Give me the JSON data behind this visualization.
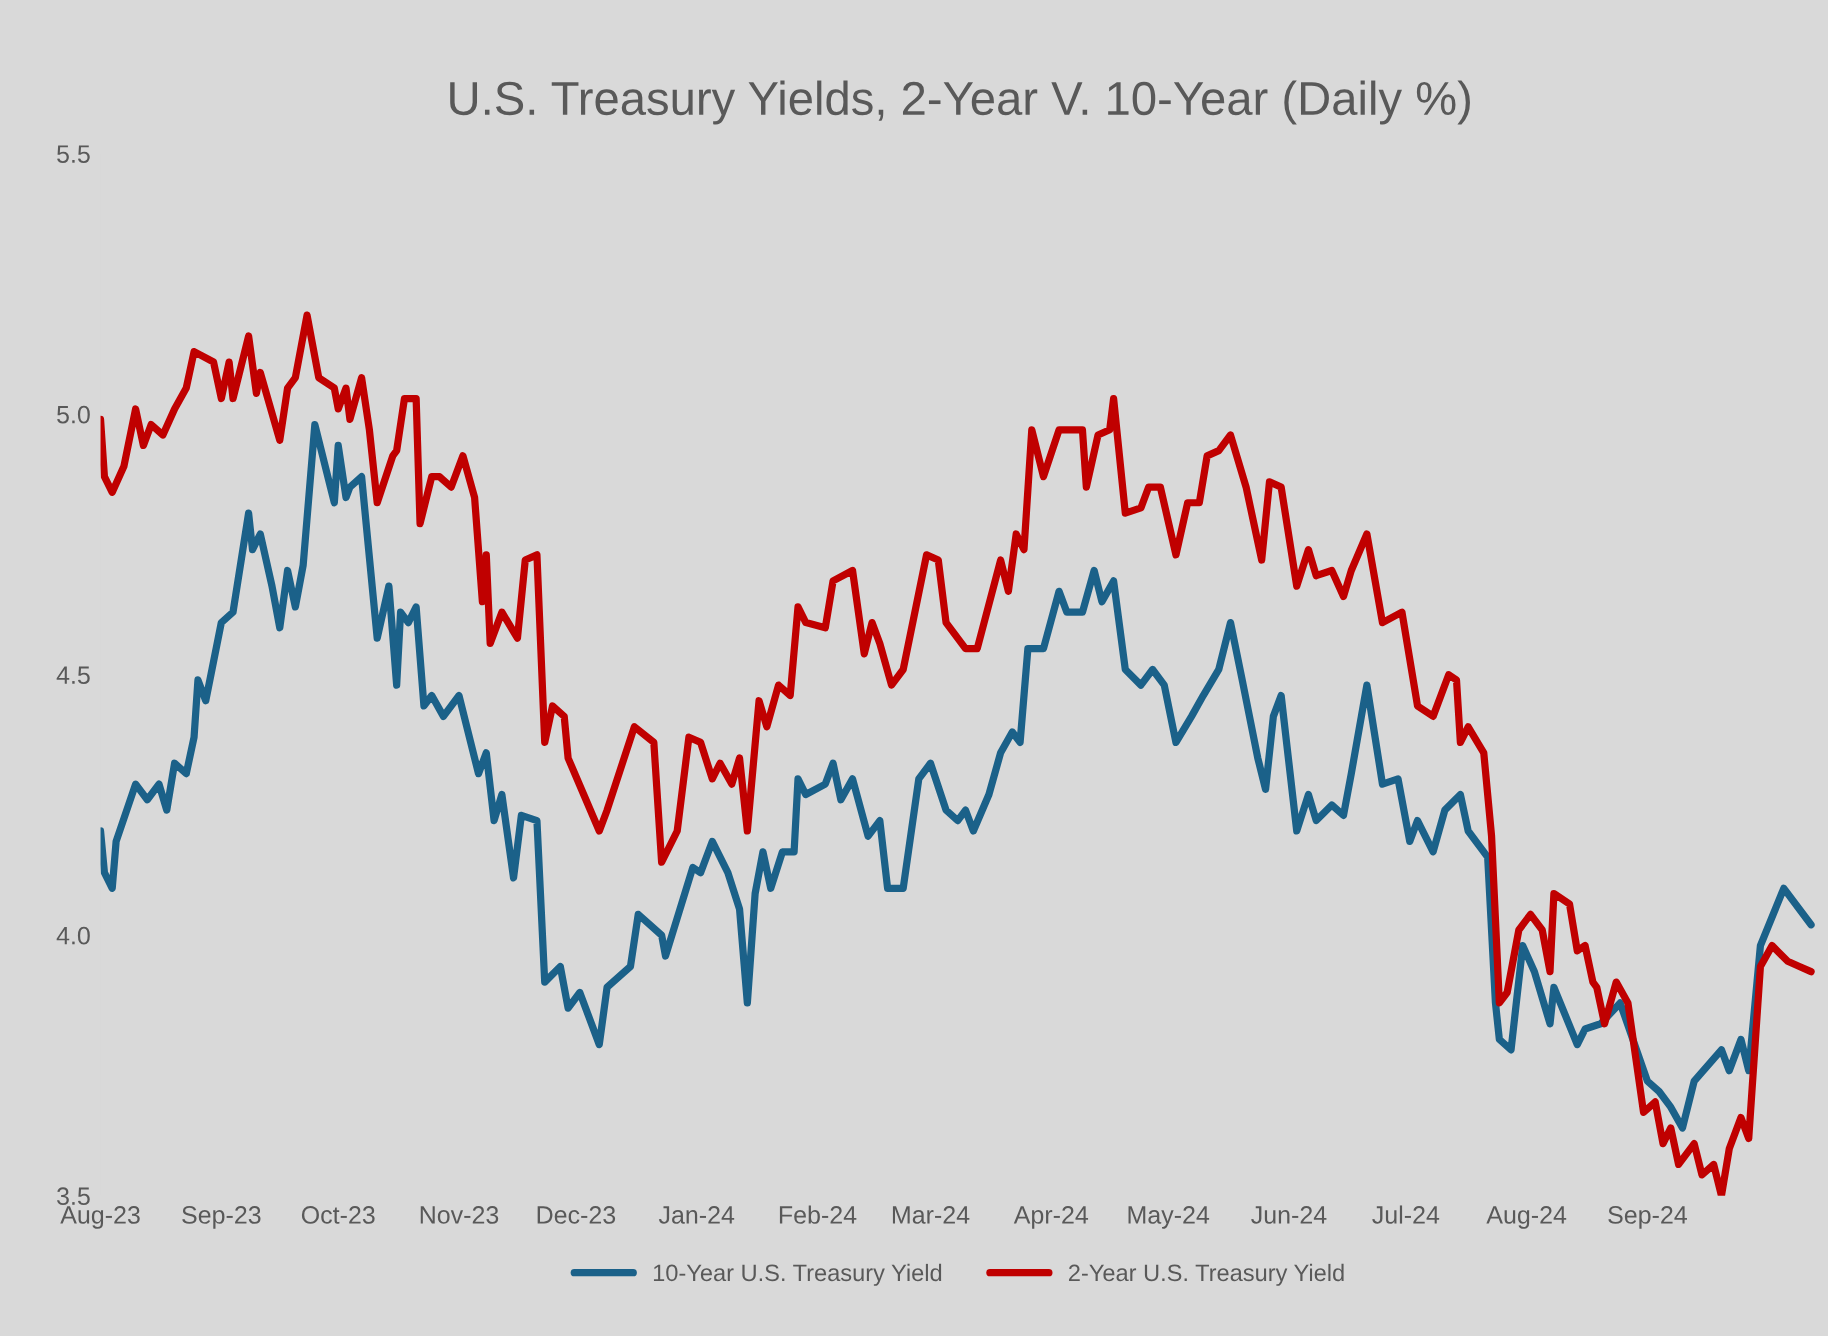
{
  "chart_data": {
    "type": "line",
    "title": "U.S. Treasury Yields, 2-Year V. 10-Year (Daily %)",
    "series": [
      {
        "name": "10-Year U.S. Treasury Yield",
        "color": "#1b6189",
        "x": [
          "2023-08-01",
          "2023-08-02",
          "2023-08-04",
          "2023-08-05",
          "2023-08-10",
          "2023-08-13",
          "2023-08-16",
          "2023-08-18",
          "2023-08-20",
          "2023-08-23",
          "2023-08-25",
          "2023-08-26",
          "2023-08-28",
          "2023-09-01",
          "2023-09-04",
          "2023-09-08",
          "2023-09-09",
          "2023-09-11",
          "2023-09-14",
          "2023-09-16",
          "2023-09-18",
          "2023-09-20",
          "2023-09-22",
          "2023-09-25",
          "2023-09-29",
          "2023-09-30",
          "2023-10-01",
          "2023-10-03",
          "2023-10-04",
          "2023-10-07",
          "2023-10-11",
          "2023-10-14",
          "2023-10-16",
          "2023-10-17",
          "2023-10-19",
          "2023-10-21",
          "2023-10-23",
          "2023-10-25",
          "2023-10-28",
          "2023-11-01",
          "2023-11-06",
          "2023-11-08",
          "2023-11-10",
          "2023-11-12",
          "2023-11-15",
          "2023-11-17",
          "2023-11-21",
          "2023-11-23",
          "2023-11-27",
          "2023-11-29",
          "2023-12-02",
          "2023-12-07",
          "2023-12-09",
          "2023-12-15",
          "2023-12-17",
          "2023-12-23",
          "2023-12-24",
          "2023-12-31",
          "2024-01-02",
          "2024-01-05",
          "2024-01-09",
          "2024-01-12",
          "2024-01-14",
          "2024-01-16",
          "2024-01-18",
          "2024-01-20",
          "2024-01-23",
          "2024-01-26",
          "2024-01-27",
          "2024-01-29",
          "2024-02-03",
          "2024-02-05",
          "2024-02-07",
          "2024-02-10",
          "2024-02-14",
          "2024-02-17",
          "2024-02-19",
          "2024-02-23",
          "2024-02-27",
          "2024-03-01",
          "2024-03-05",
          "2024-03-08",
          "2024-03-10",
          "2024-03-12",
          "2024-03-16",
          "2024-03-19",
          "2024-03-22",
          "2024-03-24",
          "2024-03-26",
          "2024-03-30",
          "2024-04-03",
          "2024-04-05",
          "2024-04-09",
          "2024-04-12",
          "2024-04-14",
          "2024-04-17",
          "2024-04-20",
          "2024-04-24",
          "2024-04-27",
          "2024-04-30",
          "2024-05-03",
          "2024-05-07",
          "2024-05-10",
          "2024-05-14",
          "2024-05-17",
          "2024-05-20",
          "2024-05-24",
          "2024-05-26",
          "2024-05-28",
          "2024-05-30",
          "2024-06-03",
          "2024-06-06",
          "2024-06-08",
          "2024-06-12",
          "2024-06-15",
          "2024-06-17",
          "2024-06-21",
          "2024-06-25",
          "2024-06-29",
          "2024-07-02",
          "2024-07-04",
          "2024-07-08",
          "2024-07-11",
          "2024-07-15",
          "2024-07-17",
          "2024-07-22",
          "2024-07-24",
          "2024-07-25",
          "2024-07-28",
          "2024-07-31",
          "2024-08-03",
          "2024-08-07",
          "2024-08-08",
          "2024-08-14",
          "2024-08-16",
          "2024-08-20",
          "2024-08-25",
          "2024-09-01",
          "2024-09-04",
          "2024-09-07",
          "2024-09-10",
          "2024-09-13",
          "2024-09-20",
          "2024-09-22",
          "2024-09-25",
          "2024-09-27",
          "2024-09-30",
          "2024-10-06",
          "2024-10-13"
        ],
        "values": [
          4.2,
          4.12,
          4.09,
          4.18,
          4.29,
          4.26,
          4.29,
          4.24,
          4.33,
          4.31,
          4.38,
          4.49,
          4.45,
          4.6,
          4.62,
          4.81,
          4.74,
          4.77,
          4.67,
          4.59,
          4.7,
          4.63,
          4.71,
          4.98,
          4.86,
          4.83,
          4.94,
          4.84,
          4.86,
          4.88,
          4.57,
          4.67,
          4.48,
          4.62,
          4.6,
          4.63,
          4.44,
          4.46,
          4.42,
          4.46,
          4.31,
          4.35,
          4.22,
          4.27,
          4.11,
          4.23,
          4.22,
          3.91,
          3.94,
          3.86,
          3.89,
          3.79,
          3.9,
          3.94,
          4.04,
          4.0,
          3.96,
          4.13,
          4.12,
          4.18,
          4.12,
          4.05,
          3.87,
          4.08,
          4.16,
          4.09,
          4.16,
          4.16,
          4.3,
          4.27,
          4.29,
          4.33,
          4.26,
          4.3,
          4.19,
          4.22,
          4.09,
          4.09,
          4.3,
          4.33,
          4.24,
          4.22,
          4.24,
          4.2,
          4.27,
          4.35,
          4.39,
          4.37,
          4.55,
          4.55,
          4.66,
          4.62,
          4.62,
          4.7,
          4.64,
          4.68,
          4.51,
          4.48,
          4.51,
          4.48,
          4.37,
          4.42,
          4.46,
          4.51,
          4.6,
          4.49,
          4.34,
          4.28,
          4.42,
          4.46,
          4.2,
          4.27,
          4.22,
          4.25,
          4.23,
          4.31,
          4.48,
          4.29,
          4.3,
          4.18,
          4.22,
          4.16,
          4.24,
          4.27,
          4.2,
          4.15,
          3.87,
          3.8,
          3.78,
          3.98,
          3.93,
          3.83,
          3.9,
          3.79,
          3.82,
          3.83,
          3.87,
          3.72,
          3.7,
          3.67,
          3.63,
          3.72,
          3.78,
          3.74,
          3.8,
          3.74,
          3.98,
          4.09,
          4.02
        ]
      },
      {
        "name": "2-Year U.S. Treasury Yield",
        "color": "#c00000",
        "x": [
          "2023-08-01",
          "2023-08-02",
          "2023-08-04",
          "2023-08-07",
          "2023-08-10",
          "2023-08-12",
          "2023-08-14",
          "2023-08-17",
          "2023-08-20",
          "2023-08-23",
          "2023-08-25",
          "2023-08-30",
          "2023-09-01",
          "2023-09-03",
          "2023-09-04",
          "2023-09-08",
          "2023-09-10",
          "2023-09-11",
          "2023-09-16",
          "2023-09-18",
          "2023-09-20",
          "2023-09-23",
          "2023-09-26",
          "2023-09-30",
          "2023-10-01",
          "2023-10-03",
          "2023-10-04",
          "2023-10-07",
          "2023-10-09",
          "2023-10-11",
          "2023-10-15",
          "2023-10-16",
          "2023-10-18",
          "2023-10-21",
          "2023-10-22",
          "2023-10-25",
          "2023-10-27",
          "2023-10-30",
          "2023-11-02",
          "2023-11-05",
          "2023-11-07",
          "2023-11-08",
          "2023-11-09",
          "2023-11-12",
          "2023-11-16",
          "2023-11-18",
          "2023-11-21",
          "2023-11-23",
          "2023-11-25",
          "2023-11-28",
          "2023-11-29",
          "2023-12-03",
          "2023-12-07",
          "2023-12-09",
          "2023-12-16",
          "2023-12-21",
          "2023-12-23",
          "2023-12-27",
          "2023-12-30",
          "2024-01-02",
          "2024-01-05",
          "2024-01-07",
          "2024-01-10",
          "2024-01-12",
          "2024-01-14",
          "2024-01-17",
          "2024-01-19",
          "2024-01-22",
          "2024-01-25",
          "2024-01-27",
          "2024-01-29",
          "2024-02-03",
          "2024-02-05",
          "2024-02-10",
          "2024-02-13",
          "2024-02-15",
          "2024-02-17",
          "2024-02-20",
          "2024-02-23",
          "2024-02-29",
          "2024-03-03",
          "2024-03-05",
          "2024-03-10",
          "2024-03-13",
          "2024-03-19",
          "2024-03-21",
          "2024-03-23",
          "2024-03-25",
          "2024-03-27",
          "2024-03-30",
          "2024-04-03",
          "2024-04-09",
          "2024-04-10",
          "2024-04-13",
          "2024-04-16",
          "2024-04-17",
          "2024-04-20",
          "2024-04-24",
          "2024-04-26",
          "2024-04-29",
          "2024-05-03",
          "2024-05-06",
          "2024-05-09",
          "2024-05-11",
          "2024-05-14",
          "2024-05-17",
          "2024-05-21",
          "2024-05-25",
          "2024-05-27",
          "2024-05-30",
          "2024-06-03",
          "2024-06-06",
          "2024-06-08",
          "2024-06-12",
          "2024-06-15",
          "2024-06-17",
          "2024-06-21",
          "2024-06-25",
          "2024-06-30",
          "2024-07-04",
          "2024-07-08",
          "2024-07-12",
          "2024-07-14",
          "2024-07-15",
          "2024-07-17",
          "2024-07-21",
          "2024-07-23",
          "2024-07-25",
          "2024-07-27",
          "2024-07-30",
          "2024-08-02",
          "2024-08-05",
          "2024-08-07",
          "2024-08-08",
          "2024-08-12",
          "2024-08-14",
          "2024-08-16",
          "2024-08-18",
          "2024-08-19",
          "2024-08-21",
          "2024-08-24",
          "2024-08-27",
          "2024-08-31",
          "2024-09-03",
          "2024-09-05",
          "2024-09-07",
          "2024-09-09",
          "2024-09-13",
          "2024-09-15",
          "2024-09-18",
          "2024-09-20",
          "2024-09-22",
          "2024-09-25",
          "2024-09-27",
          "2024-09-30",
          "2024-10-03",
          "2024-10-07",
          "2024-10-10",
          "2024-10-13"
        ],
        "values": [
          4.99,
          4.88,
          4.85,
          4.9,
          5.01,
          4.94,
          4.98,
          4.96,
          5.01,
          5.05,
          5.12,
          5.1,
          5.03,
          5.1,
          5.03,
          5.15,
          5.04,
          5.08,
          4.95,
          5.05,
          5.07,
          5.19,
          5.07,
          5.05,
          5.01,
          5.05,
          4.99,
          5.07,
          4.97,
          4.83,
          4.92,
          4.93,
          5.03,
          5.03,
          4.79,
          4.88,
          4.88,
          4.86,
          4.92,
          4.84,
          4.64,
          4.73,
          4.56,
          4.62,
          4.57,
          4.72,
          4.73,
          4.37,
          4.44,
          4.42,
          4.34,
          4.27,
          4.2,
          4.24,
          4.4,
          4.37,
          4.14,
          4.2,
          4.38,
          4.37,
          4.3,
          4.33,
          4.29,
          4.34,
          4.2,
          4.45,
          4.4,
          4.48,
          4.46,
          4.63,
          4.6,
          4.59,
          4.68,
          4.7,
          4.54,
          4.6,
          4.56,
          4.48,
          4.51,
          4.73,
          4.72,
          4.6,
          4.55,
          4.55,
          4.72,
          4.66,
          4.77,
          4.74,
          4.97,
          4.88,
          4.97,
          4.97,
          4.86,
          4.96,
          4.97,
          5.03,
          4.81,
          4.82,
          4.86,
          4.86,
          4.73,
          4.83,
          4.83,
          4.92,
          4.93,
          4.96,
          4.86,
          4.72,
          4.87,
          4.86,
          4.67,
          4.74,
          4.69,
          4.7,
          4.65,
          4.7,
          4.77,
          4.6,
          4.62,
          4.44,
          4.42,
          4.5,
          4.49,
          4.37,
          4.4,
          4.35,
          4.19,
          3.87,
          3.89,
          4.01,
          4.04,
          4.01,
          3.93,
          4.08,
          4.06,
          3.97,
          3.98,
          3.91,
          3.9,
          3.83,
          3.91,
          3.87,
          3.66,
          3.68,
          3.6,
          3.63,
          3.56,
          3.6,
          3.54,
          3.56,
          3.5,
          3.59,
          3.65,
          3.61,
          3.94,
          3.98,
          3.95,
          3.94,
          3.93
        ]
      }
    ],
    "xlim": [
      "2023-08-01",
      "2024-10-15"
    ],
    "xticks": [
      {
        "value": "2023-08-01",
        "label": "Aug-23"
      },
      {
        "value": "2023-09-01",
        "label": "Sep-23"
      },
      {
        "value": "2023-10-01",
        "label": "Oct-23"
      },
      {
        "value": "2023-11-01",
        "label": "Nov-23"
      },
      {
        "value": "2023-12-01",
        "label": "Dec-23"
      },
      {
        "value": "2024-01-01",
        "label": "Jan-24"
      },
      {
        "value": "2024-02-01",
        "label": "Feb-24"
      },
      {
        "value": "2024-03-01",
        "label": "Mar-24"
      },
      {
        "value": "2024-04-01",
        "label": "Apr-24"
      },
      {
        "value": "2024-05-01",
        "label": "May-24"
      },
      {
        "value": "2024-06-01",
        "label": "Jun-24"
      },
      {
        "value": "2024-07-01",
        "label": "Jul-24"
      },
      {
        "value": "2024-08-01",
        "label": "Aug-24"
      },
      {
        "value": "2024-09-01",
        "label": "Sep-24"
      }
    ],
    "ylim": [
      3.5,
      5.5
    ],
    "yticks": [
      {
        "value": 3.5,
        "label": "3.5"
      },
      {
        "value": 4.0,
        "label": "4.0"
      },
      {
        "value": 4.5,
        "label": "4.5"
      },
      {
        "value": 5.0,
        "label": "5.0"
      },
      {
        "value": 5.5,
        "label": "5.5"
      }
    ],
    "legend": "bottom"
  }
}
